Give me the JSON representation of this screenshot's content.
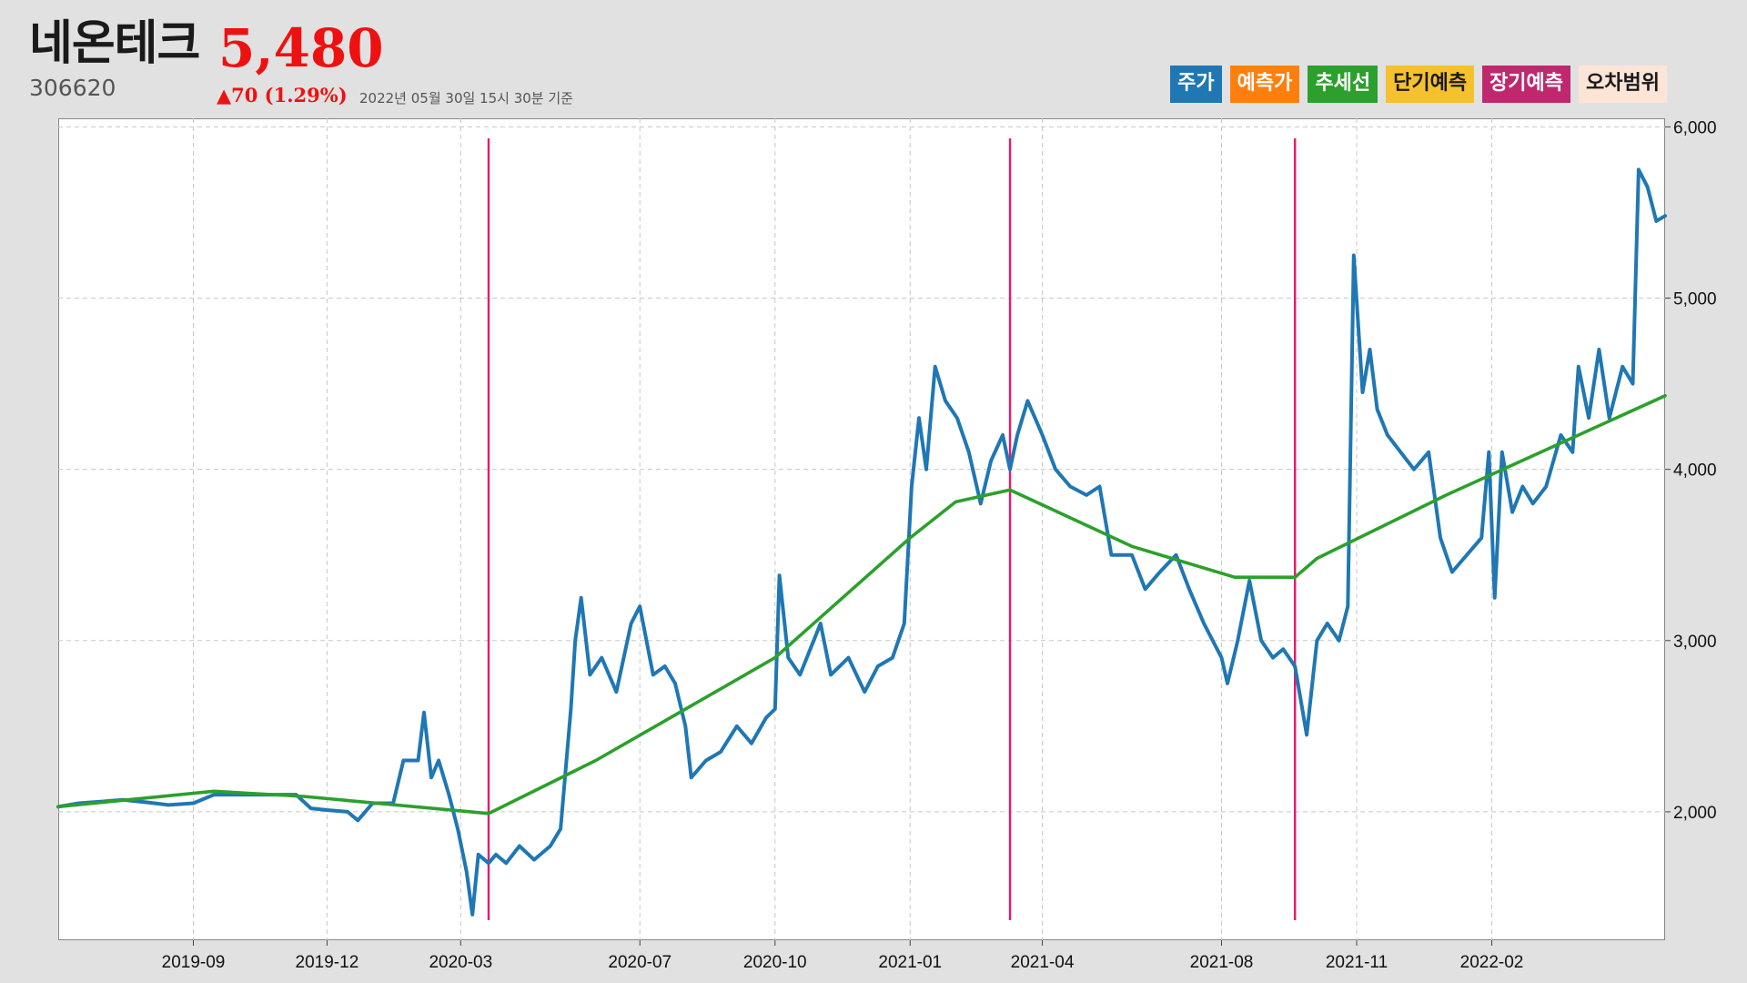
{
  "header": {
    "name": "네온테크",
    "price": "5,480",
    "code": "306620",
    "change": "▲70 (1.29%)",
    "timestamp": "2022년 05월 30일 15시 30분 기준"
  },
  "legend": [
    {
      "label": "주가",
      "color": "#1f77b4",
      "text_color": "#ffffff"
    },
    {
      "label": "예측가",
      "color": "#ff7f0e",
      "text_color": "#ffffff"
    },
    {
      "label": "추세선",
      "color": "#2ca02c",
      "text_color": "#ffffff"
    },
    {
      "label": "단기예측",
      "color": "#f5c12e",
      "text_color": "#1a1a1a"
    },
    {
      "label": "장기예측",
      "color": "#c0286e",
      "text_color": "#ffffff"
    },
    {
      "label": "오차범위",
      "color": "#fce4d6",
      "text_color": "#1a1a1a"
    }
  ],
  "chart_data": {
    "type": "line",
    "x_ticks": [
      "2019-09",
      "2019-12",
      "2020-03",
      "2020-07",
      "2020-10",
      "2021-01",
      "2021-04",
      "2021-08",
      "2021-11",
      "2022-02"
    ],
    "x_range": [
      "2019-06-01",
      "2022-05-30"
    ],
    "y_ticks": [
      2000,
      3000,
      4000,
      5000,
      6000
    ],
    "y_tick_labels": [
      "2,000",
      "3,000",
      "4,000",
      "5,000",
      "6,000"
    ],
    "ylim": [
      1250,
      6050
    ],
    "y_axis_position": "right",
    "grid": true,
    "vertical_markers": [
      "2020-03-20",
      "2021-03-10",
      "2021-09-20"
    ],
    "series": [
      {
        "name": "주가",
        "color": "#1f77b4",
        "points": [
          [
            "2019-06-01",
            2030
          ],
          [
            "2019-06-15",
            2050
          ],
          [
            "2019-07-01",
            2060
          ],
          [
            "2019-07-15",
            2070
          ],
          [
            "2019-08-01",
            2055
          ],
          [
            "2019-08-15",
            2040
          ],
          [
            "2019-09-01",
            2050
          ],
          [
            "2019-09-15",
            2100
          ],
          [
            "2019-10-01",
            2100
          ],
          [
            "2019-10-15",
            2100
          ],
          [
            "2019-11-01",
            2100
          ],
          [
            "2019-11-10",
            2100
          ],
          [
            "2019-11-20",
            2020
          ],
          [
            "2019-12-01",
            2010
          ],
          [
            "2019-12-15",
            2000
          ],
          [
            "2019-12-22",
            1950
          ],
          [
            "2020-01-01",
            2050
          ],
          [
            "2020-01-15",
            2050
          ],
          [
            "2020-01-22",
            2300
          ],
          [
            "2020-02-01",
            2300
          ],
          [
            "2020-02-05",
            2580
          ],
          [
            "2020-02-10",
            2200
          ],
          [
            "2020-02-15",
            2300
          ],
          [
            "2020-02-22",
            2100
          ],
          [
            "2020-02-28",
            1900
          ],
          [
            "2020-03-05",
            1650
          ],
          [
            "2020-03-09",
            1400
          ],
          [
            "2020-03-13",
            1750
          ],
          [
            "2020-03-20",
            1700
          ],
          [
            "2020-03-25",
            1750
          ],
          [
            "2020-04-01",
            1700
          ],
          [
            "2020-04-10",
            1800
          ],
          [
            "2020-04-20",
            1720
          ],
          [
            "2020-05-01",
            1800
          ],
          [
            "2020-05-08",
            1900
          ],
          [
            "2020-05-15",
            2600
          ],
          [
            "2020-05-18",
            3000
          ],
          [
            "2020-05-22",
            3250
          ],
          [
            "2020-05-28",
            2800
          ],
          [
            "2020-06-05",
            2900
          ],
          [
            "2020-06-15",
            2700
          ],
          [
            "2020-06-25",
            3100
          ],
          [
            "2020-07-01",
            3200
          ],
          [
            "2020-07-10",
            2800
          ],
          [
            "2020-07-18",
            2850
          ],
          [
            "2020-07-25",
            2750
          ],
          [
            "2020-08-01",
            2500
          ],
          [
            "2020-08-05",
            2200
          ],
          [
            "2020-08-15",
            2300
          ],
          [
            "2020-08-25",
            2350
          ],
          [
            "2020-09-05",
            2500
          ],
          [
            "2020-09-15",
            2400
          ],
          [
            "2020-09-25",
            2550
          ],
          [
            "2020-10-01",
            2600
          ],
          [
            "2020-10-04",
            3380
          ],
          [
            "2020-10-10",
            2900
          ],
          [
            "2020-10-18",
            2800
          ],
          [
            "2020-10-25",
            2950
          ],
          [
            "2020-11-01",
            3100
          ],
          [
            "2020-11-08",
            2800
          ],
          [
            "2020-11-20",
            2900
          ],
          [
            "2020-12-01",
            2700
          ],
          [
            "2020-12-10",
            2850
          ],
          [
            "2020-12-20",
            2900
          ],
          [
            "2020-12-28",
            3100
          ],
          [
            "2021-01-02",
            3900
          ],
          [
            "2021-01-07",
            4300
          ],
          [
            "2021-01-12",
            4000
          ],
          [
            "2021-01-18",
            4600
          ],
          [
            "2021-01-25",
            4400
          ],
          [
            "2021-02-02",
            4300
          ],
          [
            "2021-02-10",
            4100
          ],
          [
            "2021-02-18",
            3800
          ],
          [
            "2021-02-25",
            4050
          ],
          [
            "2021-03-05",
            4200
          ],
          [
            "2021-03-10",
            4000
          ],
          [
            "2021-03-15",
            4200
          ],
          [
            "2021-03-22",
            4400
          ],
          [
            "2021-04-01",
            4200
          ],
          [
            "2021-04-10",
            4000
          ],
          [
            "2021-04-20",
            3900
          ],
          [
            "2021-05-01",
            3850
          ],
          [
            "2021-05-10",
            3900
          ],
          [
            "2021-05-18",
            3500
          ],
          [
            "2021-06-01",
            3500
          ],
          [
            "2021-06-10",
            3300
          ],
          [
            "2021-06-20",
            3400
          ],
          [
            "2021-07-01",
            3500
          ],
          [
            "2021-07-10",
            3300
          ],
          [
            "2021-07-20",
            3100
          ],
          [
            "2021-08-01",
            2900
          ],
          [
            "2021-08-05",
            2750
          ],
          [
            "2021-08-12",
            3000
          ],
          [
            "2021-08-20",
            3350
          ],
          [
            "2021-08-28",
            3000
          ],
          [
            "2021-09-05",
            2900
          ],
          [
            "2021-09-12",
            2950
          ],
          [
            "2021-09-20",
            2850
          ],
          [
            "2021-09-28",
            2450
          ],
          [
            "2021-10-05",
            3000
          ],
          [
            "2021-10-12",
            3100
          ],
          [
            "2021-10-20",
            3000
          ],
          [
            "2021-10-26",
            3200
          ],
          [
            "2021-10-30",
            5250
          ],
          [
            "2021-11-05",
            4450
          ],
          [
            "2021-11-10",
            4700
          ],
          [
            "2021-11-15",
            4350
          ],
          [
            "2021-11-22",
            4200
          ],
          [
            "2021-12-01",
            4100
          ],
          [
            "2021-12-10",
            4000
          ],
          [
            "2021-12-20",
            4100
          ],
          [
            "2021-12-28",
            3600
          ],
          [
            "2022-01-05",
            3400
          ],
          [
            "2022-01-15",
            3500
          ],
          [
            "2022-01-25",
            3600
          ],
          [
            "2022-01-30",
            4100
          ],
          [
            "2022-02-03",
            3250
          ],
          [
            "2022-02-08",
            4100
          ],
          [
            "2022-02-15",
            3750
          ],
          [
            "2022-02-22",
            3900
          ],
          [
            "2022-03-01",
            3800
          ],
          [
            "2022-03-10",
            3900
          ],
          [
            "2022-03-20",
            4200
          ],
          [
            "2022-03-28",
            4100
          ],
          [
            "2022-04-01",
            4600
          ],
          [
            "2022-04-08",
            4300
          ],
          [
            "2022-04-15",
            4700
          ],
          [
            "2022-04-22",
            4300
          ],
          [
            "2022-05-01",
            4600
          ],
          [
            "2022-05-08",
            4500
          ],
          [
            "2022-05-12",
            5750
          ],
          [
            "2022-05-18",
            5650
          ],
          [
            "2022-05-24",
            5450
          ],
          [
            "2022-05-30",
            5480
          ]
        ]
      },
      {
        "name": "추세선",
        "color": "#2ca02c",
        "points": [
          [
            "2019-06-01",
            2030
          ],
          [
            "2019-09-15",
            2120
          ],
          [
            "2019-11-15",
            2090
          ],
          [
            "2020-03-20",
            1990
          ],
          [
            "2020-06-01",
            2300
          ],
          [
            "2020-10-01",
            2900
          ],
          [
            "2021-01-01",
            3600
          ],
          [
            "2021-02-01",
            3810
          ],
          [
            "2021-03-10",
            3880
          ],
          [
            "2021-06-01",
            3550
          ],
          [
            "2021-08-10",
            3370
          ],
          [
            "2021-09-20",
            3370
          ],
          [
            "2021-10-05",
            3480
          ],
          [
            "2022-01-01",
            3850
          ],
          [
            "2022-05-30",
            4430
          ]
        ]
      }
    ]
  }
}
